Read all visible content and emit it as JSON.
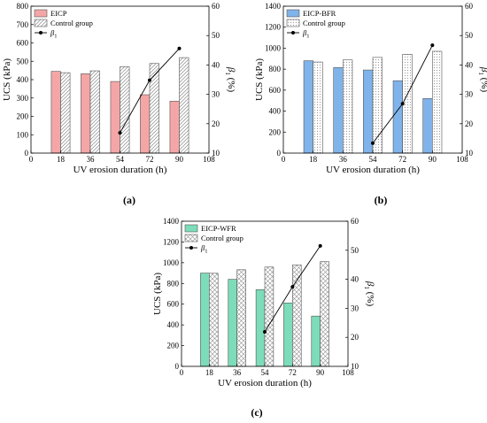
{
  "chart_data": [
    {
      "type": "bar",
      "panel_label": "(a)",
      "x": [
        18,
        36,
        54,
        72,
        90
      ],
      "xticks": [
        "0",
        "18",
        "36",
        "54",
        "72",
        "90",
        "108"
      ],
      "xlim": [
        0,
        108
      ],
      "xlabel": "UV erosion duration (h)",
      "ylabel": "UCS (kPa)",
      "ylim": [
        0,
        800
      ],
      "yticks": [
        "0",
        "100",
        "200",
        "300",
        "400",
        "500",
        "600",
        "700",
        "800"
      ],
      "y2label_main": "β",
      "y2label_sub": "1",
      "y2label_unit": " (%)",
      "y2lim": [
        10,
        60
      ],
      "y2ticks": [
        "10",
        "20",
        "30",
        "40",
        "50",
        "60"
      ],
      "legend_position": "top-left",
      "series": [
        {
          "name": "EICP",
          "values": [
            445,
            432,
            390,
            318,
            283
          ],
          "color": "#f4a6a6",
          "pattern": "solid"
        },
        {
          "name": "Control group",
          "values": [
            438,
            448,
            470,
            488,
            520
          ],
          "color": "#ffffff",
          "pattern": "diagonal"
        }
      ],
      "line": {
        "name": "β",
        "name_sub": "1",
        "x": [
          54,
          72,
          90
        ],
        "values": [
          16.9,
          34.8,
          45.6
        ]
      }
    },
    {
      "type": "bar",
      "panel_label": "(b)",
      "x": [
        18,
        36,
        54,
        72,
        90
      ],
      "xticks": [
        "0",
        "18",
        "36",
        "54",
        "72",
        "90",
        "108"
      ],
      "xlim": [
        0,
        108
      ],
      "xlabel": "UV erosion duration (h)",
      "ylabel": "UCS (kPa)",
      "ylim": [
        0,
        1400
      ],
      "yticks": [
        "0",
        "200",
        "400",
        "600",
        "800",
        "1000",
        "1200",
        "1400"
      ],
      "y2label_main": "β",
      "y2label_sub": "1",
      "y2label_unit": " (%)",
      "y2lim": [
        10,
        60
      ],
      "y2ticks": [
        "10",
        "20",
        "30",
        "40",
        "50",
        "60"
      ],
      "legend_position": "top-left",
      "series": [
        {
          "name": "EICP-BFR",
          "values": [
            880,
            815,
            792,
            690,
            520
          ],
          "color": "#7fb3ea",
          "pattern": "solid"
        },
        {
          "name": "Control group",
          "values": [
            868,
            888,
            912,
            942,
            970
          ],
          "color": "#ffffff",
          "pattern": "dots"
        }
      ],
      "line": {
        "name": "β",
        "name_sub": "1",
        "x": [
          54,
          72,
          90
        ],
        "values": [
          13.4,
          26.8,
          46.7
        ]
      }
    },
    {
      "type": "bar",
      "panel_label": "(c)",
      "x": [
        18,
        36,
        54,
        72,
        90
      ],
      "xticks": [
        "0",
        "18",
        "36",
        "54",
        "72",
        "90",
        "108"
      ],
      "xlim": [
        0,
        108
      ],
      "xlabel": "UV erosion duration (h)",
      "ylabel": "UCS (kPa)",
      "ylim": [
        0,
        1400
      ],
      "yticks": [
        "0",
        "200",
        "400",
        "600",
        "800",
        "1000",
        "1200",
        "1400"
      ],
      "y2label_main": "β",
      "y2label_sub": "1",
      "y2label_unit": " (%)",
      "y2lim": [
        10,
        60
      ],
      "y2ticks": [
        "10",
        "20",
        "30",
        "40",
        "50",
        "60"
      ],
      "legend_position": "top-left",
      "series": [
        {
          "name": "EICP-WFR",
          "values": [
            900,
            840,
            740,
            612,
            485
          ],
          "color": "#7ddcb9",
          "pattern": "solid"
        },
        {
          "name": "Control group",
          "values": [
            898,
            932,
            958,
            978,
            1010
          ],
          "color": "#ffffff",
          "pattern": "cross"
        }
      ],
      "line": {
        "name": "β",
        "name_sub": "1",
        "x": [
          54,
          72,
          90
        ],
        "values": [
          21.9,
          37.4,
          51.5
        ]
      }
    }
  ]
}
